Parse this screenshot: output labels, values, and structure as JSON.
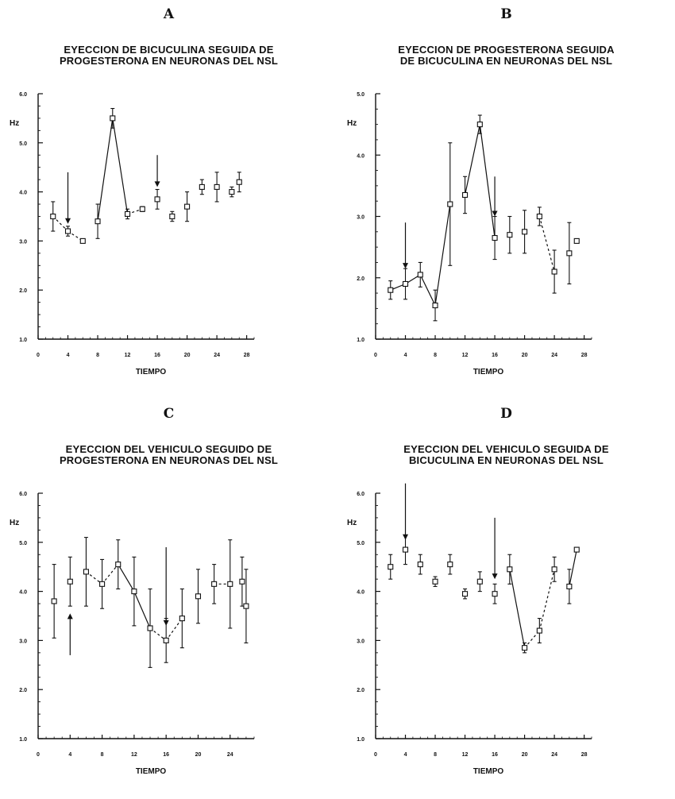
{
  "panels": [
    {
      "letter": "A",
      "title_line1": "EYECCION DE BICUCULINA SEGUIDA DE",
      "title_line2": "PROGESTERONA EN NEURONAS DEL NSL"
    },
    {
      "letter": "B",
      "title_line1": "EYECCION DE PROGESTERONA SEGUIDA",
      "title_line2": "DE BICUCULINA EN NEURONAS DEL NSL"
    },
    {
      "letter": "C",
      "title_line1": "EYECCION DEL VEHICULO SEGUIDO DE",
      "title_line2": "PROGESTERONA EN NEURONAS DEL NSL"
    },
    {
      "letter": "D",
      "title_line1": "EYECCION DEL VEHICULO SEGUIDA DE",
      "title_line2": "BICUCULINA EN NEURONAS DEL NSL"
    }
  ],
  "chart_data": [
    {
      "type": "line",
      "title": "EYECCION DE BICUCULINA SEGUIDA DE PROGESTERONA EN NEURONAS DEL NSL",
      "xlabel": "TIEMPO",
      "ylabel": "Hz",
      "xlim": [
        0,
        29
      ],
      "ylim": [
        1.0,
        6.0
      ],
      "xticks": [
        0,
        4,
        8,
        12,
        16,
        20,
        24,
        28
      ],
      "xtick_labels": [
        "0",
        "4",
        "8",
        "12",
        "16",
        "20",
        "24",
        "28"
      ],
      "yticks": [
        1.0,
        2.0,
        3.0,
        4.0,
        5.0,
        6.0
      ],
      "ytick_labels": [
        "1.0",
        "2.0",
        "3.0",
        "4.0",
        "5.0",
        "6.0"
      ],
      "x": [
        2,
        4,
        6,
        8,
        10,
        12,
        14,
        16,
        18,
        20,
        22,
        24,
        26,
        27
      ],
      "y": [
        3.5,
        3.2,
        3.0,
        3.4,
        5.5,
        3.55,
        3.65,
        3.85,
        3.5,
        3.7,
        4.1,
        4.1,
        4.0,
        4.2
      ],
      "err": [
        0.3,
        0.1,
        0.03,
        0.35,
        0.2,
        0.1,
        0.05,
        0.2,
        0.1,
        0.3,
        0.15,
        0.3,
        0.1,
        0.2
      ],
      "segments": [
        [
          0,
          1,
          "dashed"
        ],
        [
          1,
          2,
          "dashed"
        ],
        [
          3,
          4,
          "solid"
        ],
        [
          4,
          5,
          "solid"
        ],
        [
          5,
          6,
          "dashed"
        ]
      ],
      "arrows": [
        {
          "x": 4,
          "from": 4.4,
          "to": 3.35
        },
        {
          "x": 16,
          "from": 4.75,
          "to": 4.1
        }
      ]
    },
    {
      "type": "line",
      "title": "EYECCION DE PROGESTERONA SEGUIDA DE BICUCULINA EN NEURONAS DEL NSL",
      "xlabel": "TIEMPO",
      "ylabel": "Hz",
      "xlim": [
        0,
        29
      ],
      "ylim": [
        1.0,
        5.0
      ],
      "xticks": [
        0,
        4,
        8,
        12,
        16,
        20,
        24,
        28
      ],
      "xtick_labels": [
        "0",
        "4",
        "8",
        "12",
        "16",
        "20",
        "24",
        "28"
      ],
      "yticks": [
        1.0,
        2.0,
        3.0,
        4.0,
        5.0
      ],
      "ytick_labels": [
        "1.0",
        "2.0",
        "3.0",
        "4.0",
        "5.0"
      ],
      "x": [
        2,
        4,
        6,
        8,
        10,
        12,
        14,
        16,
        18,
        20,
        22,
        24,
        26,
        27
      ],
      "y": [
        1.8,
        1.9,
        2.05,
        1.55,
        3.2,
        3.35,
        4.5,
        2.65,
        2.7,
        2.75,
        3.0,
        2.1,
        2.4,
        2.6
      ],
      "err": [
        0.15,
        0.25,
        0.2,
        0.25,
        1.0,
        0.3,
        0.15,
        0.35,
        0.3,
        0.35,
        0.15,
        0.35,
        0.5,
        0.0
      ],
      "segments": [
        [
          0,
          1,
          "solid"
        ],
        [
          1,
          2,
          "solid"
        ],
        [
          2,
          3,
          "solid"
        ],
        [
          3,
          4,
          "solid"
        ],
        [
          5,
          6,
          "solid"
        ],
        [
          6,
          7,
          "solid"
        ],
        [
          10,
          11,
          "dashed"
        ]
      ],
      "arrows": [
        {
          "x": 4,
          "from": 2.9,
          "to": 2.15
        },
        {
          "x": 16,
          "from": 3.65,
          "to": 3.0
        }
      ]
    },
    {
      "type": "line",
      "title": "EYECCION DEL VEHICULO SEGUIDO DE PROGESTERONA EN NEURONAS DEL NSL",
      "xlabel": "TIEMPO",
      "ylabel": "Hz",
      "xlim": [
        0,
        27
      ],
      "ylim": [
        1.0,
        6.0
      ],
      "xticks": [
        0,
        4,
        8,
        12,
        16,
        20,
        24
      ],
      "xtick_labels": [
        "0",
        "4",
        "8",
        "12",
        "16",
        "20",
        "24"
      ],
      "yticks": [
        1.0,
        2.0,
        3.0,
        4.0,
        5.0,
        6.0
      ],
      "ytick_labels": [
        "1.0",
        "2.0",
        "3.0",
        "4.0",
        "5.0",
        "6.0"
      ],
      "x": [
        2,
        4,
        6,
        8,
        10,
        12,
        14,
        16,
        18,
        20,
        22,
        24,
        25.5,
        26
      ],
      "y": [
        3.8,
        4.2,
        4.4,
        4.15,
        4.55,
        4.0,
        3.25,
        3.0,
        3.45,
        3.9,
        4.15,
        4.15,
        4.2,
        3.7
      ],
      "err": [
        0.75,
        0.5,
        0.7,
        0.5,
        0.5,
        0.7,
        0.8,
        0.45,
        0.6,
        0.55,
        0.4,
        0.9,
        0.5,
        0.75
      ],
      "segments": [
        [
          2,
          3,
          "dashed"
        ],
        [
          3,
          4,
          "dashed"
        ],
        [
          4,
          5,
          "solid"
        ],
        [
          5,
          6,
          "solid"
        ],
        [
          6,
          7,
          "dashed"
        ],
        [
          7,
          8,
          "dashed"
        ],
        [
          10,
          11,
          "dashed"
        ]
      ],
      "arrows": [
        {
          "x": 4,
          "from": 2.7,
          "to": 3.55
        },
        {
          "x": 16,
          "from": 4.9,
          "to": 3.3
        }
      ]
    },
    {
      "type": "line",
      "title": "EYECCION DEL VEHICULO SEGUIDA DE BICUCULINA EN NEURONAS DEL NSL",
      "xlabel": "TIEMPO",
      "ylabel": "Hz",
      "xlim": [
        0,
        29
      ],
      "ylim": [
        1.0,
        6.0
      ],
      "xticks": [
        0,
        4,
        8,
        12,
        16,
        20,
        24,
        28
      ],
      "xtick_labels": [
        "0",
        "4",
        "8",
        "12",
        "16",
        "20",
        "24",
        "28"
      ],
      "yticks": [
        1.0,
        2.0,
        3.0,
        4.0,
        5.0,
        6.0
      ],
      "ytick_labels": [
        "1.0",
        "2.0",
        "3.0",
        "4.0",
        "5.0",
        "6.0"
      ],
      "x": [
        2,
        4,
        6,
        8,
        10,
        12,
        14,
        16,
        18,
        20,
        22,
        24,
        26,
        27
      ],
      "y": [
        4.5,
        4.85,
        4.55,
        4.2,
        4.55,
        3.95,
        4.2,
        3.95,
        4.45,
        2.85,
        3.2,
        4.45,
        4.1,
        4.85
      ],
      "err": [
        0.25,
        0.3,
        0.2,
        0.1,
        0.2,
        0.1,
        0.2,
        0.2,
        0.3,
        0.1,
        0.25,
        0.25,
        0.35,
        0.0
      ],
      "segments": [
        [
          8,
          9,
          "solid"
        ],
        [
          9,
          10,
          "dashed"
        ],
        [
          10,
          11,
          "dashed"
        ],
        [
          12,
          13,
          "solid"
        ]
      ],
      "arrows": [
        {
          "x": 4,
          "from": 6.2,
          "to": 5.05
        },
        {
          "x": 16,
          "from": 5.5,
          "to": 4.25
        }
      ]
    }
  ]
}
